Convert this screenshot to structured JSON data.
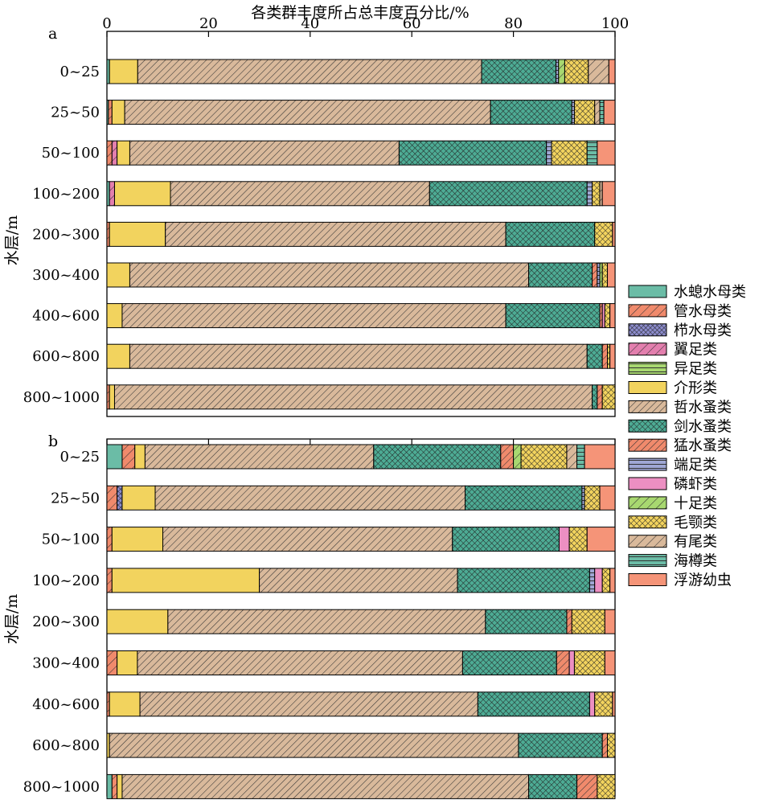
{
  "figure": {
    "x_axis_title": "各类群丰度所占总丰度百分比/%",
    "y_axis_title": "水层/m"
  },
  "legend": [
    {
      "label": "水螅水母类",
      "color": "#6bbca6",
      "pattern": "solid"
    },
    {
      "label": "管水母类",
      "color": "#f08a6c",
      "pattern": "hatch-wide"
    },
    {
      "label": "栉水母类",
      "color": "#8c8ccc",
      "pattern": "cross-dense"
    },
    {
      "label": "翼足类",
      "color": "#e37fae",
      "pattern": "hatch-wide"
    },
    {
      "label": "异足类",
      "color": "#a8d870",
      "pattern": "hbands"
    },
    {
      "label": "介形类",
      "color": "#f2d35e",
      "pattern": "solid"
    },
    {
      "label": "哲水蚤类",
      "color": "#d9b99b",
      "pattern": "hatch"
    },
    {
      "label": "剑水蚤类",
      "color": "#4dab94",
      "pattern": "cross"
    },
    {
      "label": "猛水蚤类",
      "color": "#f08a6c",
      "pattern": "hatch"
    },
    {
      "label": "端足类",
      "color": "#9fa7d4",
      "pattern": "hbands"
    },
    {
      "label": "磷虾类",
      "color": "#ec8fc2",
      "pattern": "solid"
    },
    {
      "label": "十足类",
      "color": "#a8d870",
      "pattern": "hatch-wide"
    },
    {
      "label": "毛颚类",
      "color": "#f2d35e",
      "pattern": "cross"
    },
    {
      "label": "有尾类",
      "color": "#d9b99b",
      "pattern": "hatch-wide"
    },
    {
      "label": "海樽类",
      "color": "#6bbca6",
      "pattern": "hbands"
    },
    {
      "label": "浮游幼虫",
      "color": "#f59478",
      "pattern": "solid"
    }
  ],
  "chart_data": [
    {
      "type": "bar",
      "stacked": true,
      "orientation": "horizontal",
      "panel": "a",
      "xlim": [
        0,
        100
      ],
      "xticks": [
        "0",
        "20",
        "40",
        "60",
        "80",
        "100"
      ],
      "categories": [
        "0~25",
        "25~50",
        "50~100",
        "100~200",
        "200~300",
        "300~400",
        "400~600",
        "600~800",
        "800~1000"
      ],
      "series_order": [
        "水螅水母类",
        "管水母类",
        "栉水母类",
        "翼足类",
        "异足类",
        "介形类",
        "哲水蚤类",
        "剑水蚤类",
        "猛水蚤类",
        "端足类",
        "磷虾类",
        "十足类",
        "毛颚类",
        "有尾类",
        "海樽类",
        "浮游幼虫"
      ],
      "rows": [
        [
          0.5,
          0,
          0,
          0,
          0,
          5.5,
          67,
          14.5,
          0,
          0.5,
          0,
          1.2,
          4.6,
          4,
          0,
          1.2
        ],
        [
          0.3,
          0.7,
          0,
          0,
          0,
          2.5,
          72,
          16,
          0,
          0.5,
          0,
          0,
          4,
          1,
          0.8,
          2.2
        ],
        [
          0,
          1,
          0,
          1,
          0,
          2.5,
          53,
          29,
          0,
          1,
          0,
          0,
          7,
          0,
          2,
          3.5
        ],
        [
          0.5,
          0,
          0,
          1,
          0,
          11,
          51,
          31,
          0,
          1,
          0,
          0,
          1.5,
          0.5,
          0,
          2.5
        ],
        [
          0,
          0.5,
          0,
          0,
          0,
          11,
          67,
          17.5,
          0,
          0,
          0,
          0,
          3.5,
          0,
          0,
          0.5
        ],
        [
          0,
          0,
          0,
          0,
          0,
          4.5,
          78.5,
          12.5,
          1,
          0.5,
          0,
          0.5,
          1,
          0,
          0,
          1.5
        ],
        [
          0,
          0,
          0,
          0,
          0,
          3,
          75.5,
          18.5,
          0.5,
          0,
          0.5,
          0,
          1,
          0,
          0,
          1
        ],
        [
          0,
          0,
          0,
          0,
          0,
          4.5,
          90,
          3,
          1,
          0,
          0,
          0,
          0.5,
          0,
          0,
          1
        ],
        [
          0,
          0.5,
          0,
          0,
          0,
          1,
          94,
          1,
          1,
          0,
          0,
          0,
          2.5,
          0,
          0,
          0
        ]
      ]
    },
    {
      "type": "bar",
      "stacked": true,
      "orientation": "horizontal",
      "panel": "b",
      "xlim": [
        0,
        100
      ],
      "categories": [
        "0~25",
        "25~50",
        "50~100",
        "100~200",
        "200~300",
        "300~400",
        "400~600",
        "600~800",
        "800~1000"
      ],
      "series_order": [
        "水螅水母类",
        "管水母类",
        "栉水母类",
        "翼足类",
        "异足类",
        "介形类",
        "哲水蚤类",
        "剑水蚤类",
        "猛水蚤类",
        "端足类",
        "磷虾类",
        "十足类",
        "毛颚类",
        "有尾类",
        "海樽类",
        "浮游幼虫"
      ],
      "rows": [
        [
          3,
          2.5,
          0,
          0,
          0,
          2,
          45,
          25,
          2.5,
          0,
          0,
          1.5,
          9,
          2,
          1.5,
          6
        ],
        [
          0,
          2,
          1,
          0,
          0,
          6.5,
          61,
          23,
          0,
          0.5,
          0,
          0,
          3,
          0,
          0,
          3
        ],
        [
          0,
          1,
          0,
          0,
          0,
          10,
          57,
          21,
          0,
          0,
          2,
          0,
          3.5,
          0,
          0,
          5.5
        ],
        [
          0,
          1,
          0,
          0,
          0,
          29,
          39,
          26,
          0,
          1,
          1.5,
          0,
          1.5,
          0,
          0,
          1
        ],
        [
          0,
          0,
          0,
          0,
          0,
          12,
          62.5,
          16,
          1,
          0,
          0,
          0,
          6.5,
          0,
          0,
          2
        ],
        [
          0,
          2,
          0,
          0,
          0,
          4,
          64,
          18.5,
          2.5,
          0,
          1,
          0,
          6,
          0,
          0,
          2
        ],
        [
          0,
          0.5,
          0,
          0,
          0,
          6,
          66.5,
          22,
          0,
          0,
          1,
          0,
          3.5,
          0,
          0,
          0.5
        ],
        [
          0,
          0,
          0,
          0,
          0,
          0.5,
          80.5,
          16.5,
          1,
          0,
          0,
          0,
          1.5,
          0,
          0,
          0
        ],
        [
          1,
          1,
          0,
          0,
          0,
          1,
          80,
          9.5,
          4,
          0,
          0,
          0,
          3.5,
          0,
          0,
          0
        ]
      ]
    }
  ]
}
